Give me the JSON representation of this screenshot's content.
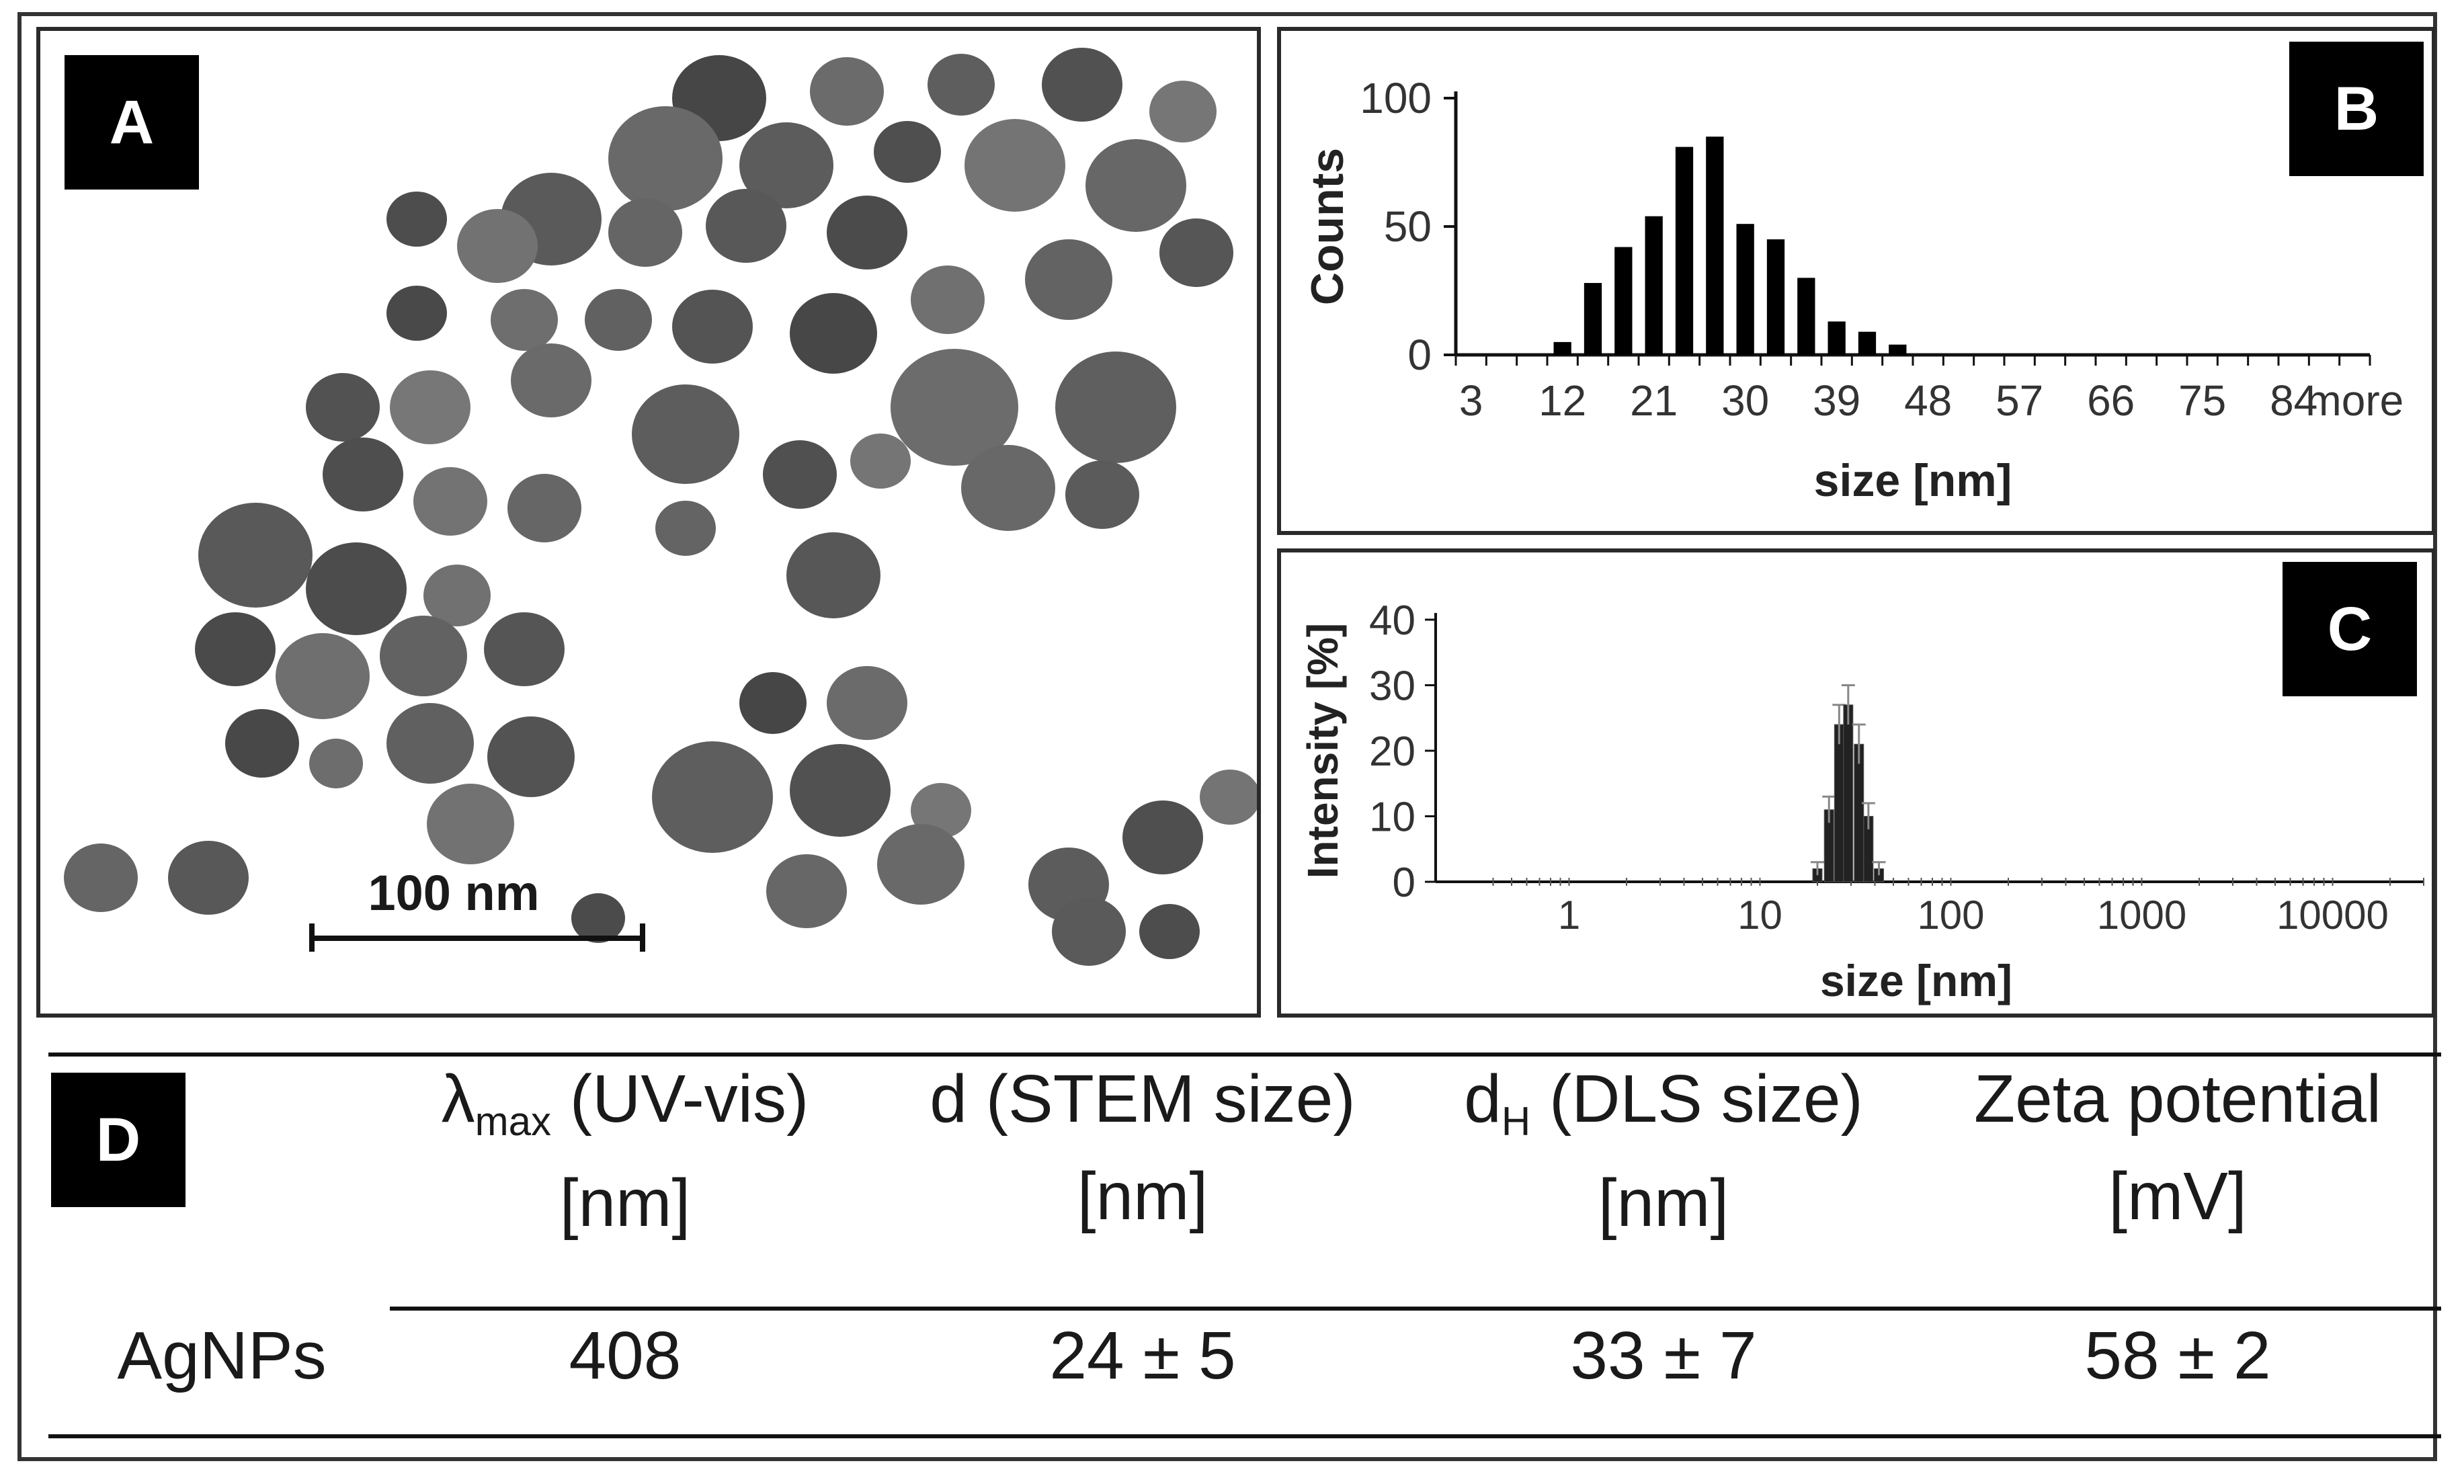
{
  "panels": {
    "A": {
      "tag": "A",
      "scale_bar": "100 nm",
      "particle_image": "stem-micrograph"
    },
    "B": {
      "tag": "B"
    },
    "C": {
      "tag": "C"
    },
    "D": {
      "tag": "D"
    }
  },
  "chart_data": [
    {
      "type": "bar",
      "panel": "B",
      "title": "",
      "xlabel": "size [nm]",
      "ylabel": "Counts",
      "tick_labels": [
        "3",
        "12",
        "21",
        "30",
        "39",
        "48",
        "57",
        "66",
        "75",
        "84",
        "more"
      ],
      "bins": [
        "3",
        "6",
        "9",
        "12",
        "15",
        "18",
        "21",
        "24",
        "27",
        "30",
        "33",
        "36",
        "39",
        "42",
        "45",
        "48",
        "51",
        "54",
        "57",
        "60",
        "63",
        "66",
        "69",
        "72",
        "75",
        "78",
        "81",
        "84",
        "87",
        "more"
      ],
      "values": [
        0,
        0,
        0,
        5,
        28,
        42,
        54,
        81,
        85,
        51,
        45,
        30,
        13,
        9,
        4,
        0,
        0,
        0,
        0,
        0,
        0,
        0,
        0,
        0,
        0,
        0,
        0,
        0,
        0,
        0
      ],
      "yticks": [
        "0",
        "50",
        "100"
      ],
      "ylim": [
        0,
        100
      ],
      "color": "#000000"
    },
    {
      "type": "bar",
      "panel": "C",
      "xscale": "log",
      "xlabel": "size [nm]",
      "ylabel": "Intensity [%]",
      "xticks": [
        "1",
        "10",
        "100",
        "1000",
        "10000"
      ],
      "yticks": [
        "0",
        "10",
        "20",
        "30",
        "40"
      ],
      "ylim": [
        0,
        40
      ],
      "x": [
        20,
        23,
        26,
        29,
        33,
        37,
        42
      ],
      "values": [
        2,
        11,
        24,
        27,
        21,
        10,
        2
      ],
      "errors": [
        1,
        2,
        3,
        3,
        3,
        2,
        1
      ],
      "color": "#222222"
    }
  ],
  "table": {
    "tag": "D",
    "headers": [
      {
        "l1_pre": "λ",
        "l1_sub": "max",
        "l1_post": " (UV-vis)",
        "l2": "[nm]"
      },
      {
        "l1_pre": "d (STEM size)",
        "l1_sub": "",
        "l1_post": "",
        "l2": "[nm]"
      },
      {
        "l1_pre": "d",
        "l1_sub": "H",
        "l1_post": " (DLS size)",
        "l2": "[nm]"
      },
      {
        "l1_pre": "Zeta potential",
        "l1_sub": "",
        "l1_post": "",
        "l2": "[mV]"
      }
    ],
    "row_label": "AgNPs",
    "values": [
      "408",
      "24 ± 5",
      "33 ± 7",
      "58 ± 2"
    ]
  }
}
